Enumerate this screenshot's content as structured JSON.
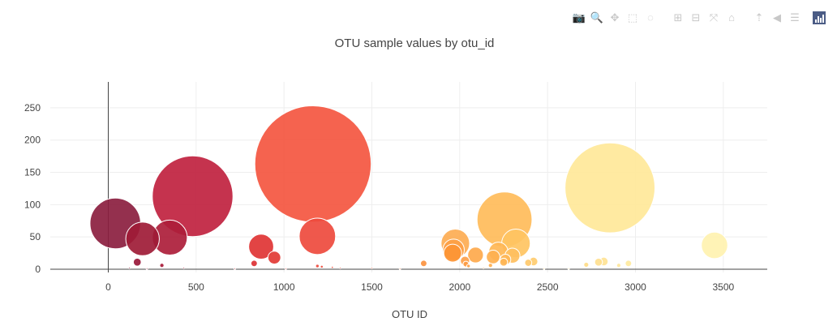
{
  "modebar": {
    "buttons": [
      {
        "name": "camera-icon",
        "glyph": "📷"
      },
      {
        "name": "zoom-icon",
        "glyph": "🔍",
        "active": true
      },
      {
        "name": "pan-icon",
        "glyph": "✥"
      },
      {
        "name": "box-select-icon",
        "glyph": "⬚"
      },
      {
        "name": "lasso-select-icon",
        "glyph": "◌"
      },
      {
        "name": "zoom-in-icon",
        "glyph": "⊞"
      },
      {
        "name": "zoom-out-icon",
        "glyph": "⊟"
      },
      {
        "name": "autoscale-icon",
        "glyph": "⤧"
      },
      {
        "name": "reset-axes-icon",
        "glyph": "⌂"
      },
      {
        "name": "spike-lines-icon",
        "glyph": "⇡"
      },
      {
        "name": "hover-closest-icon",
        "glyph": "◀"
      },
      {
        "name": "hover-compare-icon",
        "glyph": "☰"
      }
    ]
  },
  "chart_data": {
    "type": "scatter",
    "title": "OTU sample values by otu_id",
    "xlabel": "OTU ID",
    "ylabel": "",
    "xlim": [
      -330,
      3750
    ],
    "ylim": [
      -5,
      290
    ],
    "xticks": [
      0,
      500,
      1000,
      1500,
      2000,
      2500,
      3000,
      3500
    ],
    "yticks": [
      0,
      50,
      100,
      150,
      200,
      250
    ],
    "grid": true,
    "colorscale": "YlOrRd (reversed)",
    "series": [
      {
        "values": [
          {
            "x": 40,
            "y": 71,
            "size": 71,
            "color": "#8b1e3f"
          },
          {
            "x": 480,
            "y": 113,
            "size": 113,
            "color": "#c0223f"
          },
          {
            "x": 1165,
            "y": 163,
            "size": 163,
            "color": "#f45640"
          },
          {
            "x": 2855,
            "y": 126,
            "size": 126,
            "color": "#ffe899"
          },
          {
            "x": 2255,
            "y": 77,
            "size": 77,
            "color": "#ffbc5a"
          },
          {
            "x": 195,
            "y": 47,
            "size": 47,
            "color": "#9e1b36"
          },
          {
            "x": 350,
            "y": 49,
            "size": 49,
            "color": "#ad1d3a"
          },
          {
            "x": 1190,
            "y": 51,
            "size": 51,
            "color": "#ee4a3d"
          },
          {
            "x": 870,
            "y": 35,
            "size": 35,
            "color": "#e03434"
          },
          {
            "x": 945,
            "y": 18,
            "size": 18,
            "color": "#e23a34"
          },
          {
            "x": 3450,
            "y": 37,
            "size": 37,
            "color": "#fff2b0"
          },
          {
            "x": 1975,
            "y": 40,
            "size": 40,
            "color": "#fdac52"
          },
          {
            "x": 1965,
            "y": 30,
            "size": 30,
            "color": "#fd9f45"
          },
          {
            "x": 1960,
            "y": 25,
            "size": 25,
            "color": "#fd9535"
          },
          {
            "x": 2320,
            "y": 40,
            "size": 40,
            "color": "#ffc462"
          },
          {
            "x": 2220,
            "y": 27,
            "size": 27,
            "color": "#ffb755"
          },
          {
            "x": 2090,
            "y": 22,
            "size": 22,
            "color": "#fea94c"
          },
          {
            "x": 2300,
            "y": 21,
            "size": 21,
            "color": "#ffbf5e"
          },
          {
            "x": 2190,
            "y": 19,
            "size": 19,
            "color": "#feb050"
          },
          {
            "x": 2260,
            "y": 15,
            "size": 15,
            "color": "#ffb758"
          },
          {
            "x": 2030,
            "y": 13,
            "size": 13,
            "color": "#fda048"
          },
          {
            "x": 2250,
            "y": 11,
            "size": 11,
            "color": "#ffb656"
          },
          {
            "x": 2420,
            "y": 12,
            "size": 12,
            "color": "#ffcc6f"
          },
          {
            "x": 2390,
            "y": 10,
            "size": 10,
            "color": "#ffc96b"
          },
          {
            "x": 1795,
            "y": 9,
            "size": 9,
            "color": "#fb933f"
          },
          {
            "x": 2035,
            "y": 8,
            "size": 8,
            "color": "#fd9c44"
          },
          {
            "x": 2790,
            "y": 11,
            "size": 11,
            "color": "#ffe08f"
          },
          {
            "x": 2820,
            "y": 12,
            "size": 12,
            "color": "#ffe395"
          },
          {
            "x": 2960,
            "y": 9,
            "size": 9,
            "color": "#ffea9e"
          },
          {
            "x": 2720,
            "y": 7,
            "size": 7,
            "color": "#ffdc87"
          },
          {
            "x": 2905,
            "y": 6,
            "size": 6,
            "color": "#ffe79c"
          },
          {
            "x": 165,
            "y": 11,
            "size": 11,
            "color": "#99183a"
          },
          {
            "x": 305,
            "y": 6,
            "size": 6,
            "color": "#a81b39"
          },
          {
            "x": 830,
            "y": 9,
            "size": 9,
            "color": "#dc3134"
          },
          {
            "x": 1190,
            "y": 5,
            "size": 5,
            "color": "#ee4a3d"
          },
          {
            "x": 1215,
            "y": 4,
            "size": 4,
            "color": "#ef4b3d"
          },
          {
            "x": 2050,
            "y": 5,
            "size": 5,
            "color": "#fd9f47"
          },
          {
            "x": 2175,
            "y": 6,
            "size": 6,
            "color": "#feae4f"
          },
          {
            "x": 1275,
            "y": 3,
            "size": 3,
            "color": "#f1503e"
          },
          {
            "x": 1320,
            "y": 2,
            "size": 2,
            "color": "#f2523e"
          },
          {
            "x": 1500,
            "y": 2,
            "size": 2,
            "color": "#f6683f"
          },
          {
            "x": 120,
            "y": 2,
            "size": 2,
            "color": "#951738"
          },
          {
            "x": 220,
            "y": 1,
            "size": 1,
            "color": "#a01a38"
          },
          {
            "x": 430,
            "y": 2,
            "size": 2,
            "color": "#b41e3b"
          },
          {
            "x": 720,
            "y": 1,
            "size": 1,
            "color": "#cf2a37"
          },
          {
            "x": 1010,
            "y": 1,
            "size": 1,
            "color": "#e53c36"
          },
          {
            "x": 1660,
            "y": 1,
            "size": 1,
            "color": "#f87c3f"
          },
          {
            "x": 2135,
            "y": 2,
            "size": 2,
            "color": "#fea84c"
          },
          {
            "x": 2480,
            "y": 1,
            "size": 1,
            "color": "#ffd074"
          },
          {
            "x": 2620,
            "y": 1,
            "size": 1,
            "color": "#ffd77e"
          }
        ]
      }
    ]
  }
}
